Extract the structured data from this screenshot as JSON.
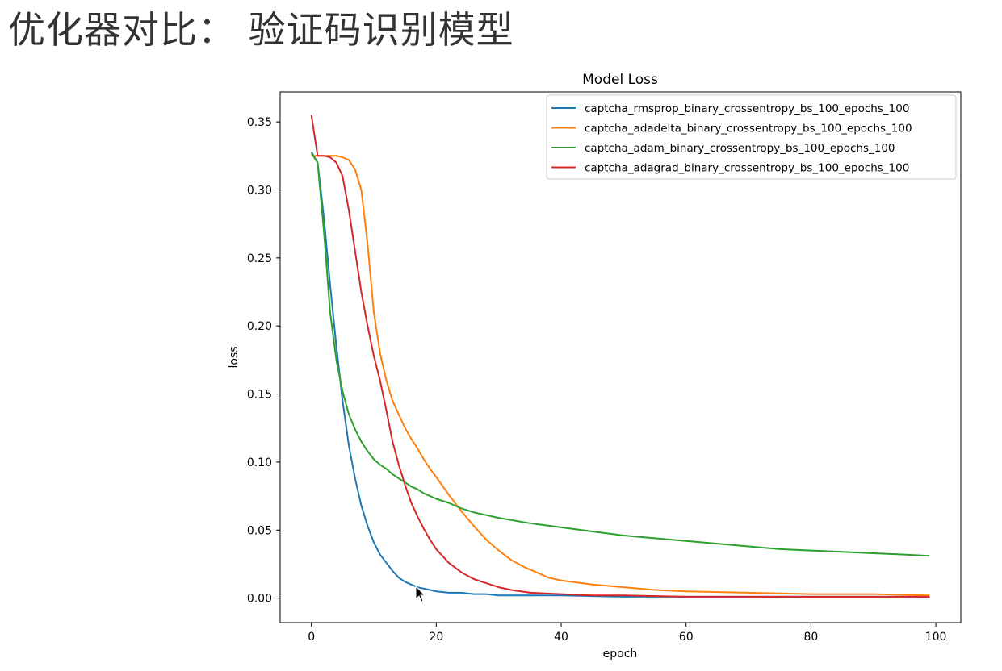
{
  "slide": {
    "title": "优化器对比： 验证码识别模型"
  },
  "chart_data": {
    "type": "line",
    "title": "Model Loss",
    "xlabel": "epoch",
    "ylabel": "loss",
    "xlim": [
      -5,
      104
    ],
    "ylim": [
      -0.018,
      0.372
    ],
    "xticks": [
      0,
      20,
      40,
      60,
      80,
      100
    ],
    "xtick_labels": [
      "0",
      "20",
      "40",
      "60",
      "80",
      "100"
    ],
    "yticks": [
      0.0,
      0.05,
      0.1,
      0.15,
      0.2,
      0.25,
      0.3,
      0.35
    ],
    "ytick_labels": [
      "0.00",
      "0.05",
      "0.10",
      "0.15",
      "0.20",
      "0.25",
      "0.30",
      "0.35"
    ],
    "grid": false,
    "legend_position": "top-right",
    "series": [
      {
        "name": "captcha_rmsprop_binary_crossentropy_bs_100_epochs_100",
        "color": "#1f77b4",
        "x": [
          0,
          1,
          2,
          3,
          4,
          5,
          6,
          7,
          8,
          9,
          10,
          11,
          12,
          13,
          14,
          15,
          16,
          17,
          18,
          19,
          20,
          22,
          24,
          26,
          28,
          30,
          35,
          40,
          50,
          60,
          70,
          80,
          90,
          99
        ],
        "y": [
          0.328,
          0.32,
          0.28,
          0.23,
          0.185,
          0.145,
          0.112,
          0.088,
          0.068,
          0.053,
          0.041,
          0.032,
          0.026,
          0.02,
          0.015,
          0.012,
          0.01,
          0.008,
          0.007,
          0.006,
          0.005,
          0.004,
          0.004,
          0.003,
          0.003,
          0.002,
          0.002,
          0.002,
          0.001,
          0.001,
          0.001,
          0.001,
          0.001,
          0.001
        ]
      },
      {
        "name": "captcha_adadelta_binary_crossentropy_bs_100_epochs_100",
        "color": "#ff7f0e",
        "x": [
          0,
          2,
          4,
          5,
          6,
          7,
          8,
          9,
          10,
          11,
          12,
          13,
          14,
          15,
          16,
          17,
          18,
          19,
          20,
          22,
          24,
          26,
          28,
          30,
          32,
          34,
          36,
          38,
          40,
          45,
          50,
          55,
          60,
          70,
          80,
          90,
          99
        ],
        "y": [
          0.325,
          0.325,
          0.325,
          0.324,
          0.322,
          0.315,
          0.3,
          0.26,
          0.21,
          0.18,
          0.16,
          0.145,
          0.135,
          0.125,
          0.117,
          0.11,
          0.102,
          0.095,
          0.089,
          0.076,
          0.064,
          0.053,
          0.043,
          0.035,
          0.028,
          0.023,
          0.019,
          0.015,
          0.013,
          0.01,
          0.008,
          0.006,
          0.005,
          0.004,
          0.003,
          0.003,
          0.002
        ]
      },
      {
        "name": "captcha_adam_binary_crossentropy_bs_100_epochs_100",
        "color": "#2ca02c",
        "x": [
          0,
          1,
          2,
          3,
          4,
          5,
          6,
          7,
          8,
          9,
          10,
          11,
          12,
          13,
          14,
          15,
          16,
          17,
          18,
          19,
          20,
          22,
          24,
          26,
          28,
          30,
          35,
          40,
          45,
          50,
          55,
          60,
          65,
          70,
          75,
          80,
          85,
          90,
          95,
          99
        ],
        "y": [
          0.327,
          0.32,
          0.27,
          0.21,
          0.175,
          0.152,
          0.135,
          0.124,
          0.115,
          0.108,
          0.102,
          0.098,
          0.095,
          0.091,
          0.088,
          0.085,
          0.082,
          0.08,
          0.077,
          0.075,
          0.073,
          0.07,
          0.066,
          0.063,
          0.061,
          0.059,
          0.055,
          0.052,
          0.049,
          0.046,
          0.044,
          0.042,
          0.04,
          0.038,
          0.036,
          0.035,
          0.034,
          0.033,
          0.032,
          0.031
        ]
      },
      {
        "name": "captcha_adagrad_binary_crossentropy_bs_100_epochs_100",
        "color": "#d62728",
        "x": [
          0,
          1,
          2,
          3,
          4,
          5,
          6,
          7,
          8,
          9,
          10,
          11,
          12,
          13,
          14,
          15,
          16,
          17,
          18,
          19,
          20,
          22,
          24,
          26,
          28,
          30,
          32,
          35,
          40,
          45,
          50,
          60,
          70,
          80,
          90,
          99
        ],
        "y": [
          0.355,
          0.325,
          0.325,
          0.324,
          0.32,
          0.31,
          0.285,
          0.255,
          0.225,
          0.2,
          0.178,
          0.16,
          0.138,
          0.115,
          0.098,
          0.083,
          0.07,
          0.06,
          0.051,
          0.043,
          0.036,
          0.026,
          0.019,
          0.014,
          0.011,
          0.008,
          0.006,
          0.004,
          0.003,
          0.002,
          0.002,
          0.001,
          0.001,
          0.001,
          0.001,
          0.001
        ]
      }
    ]
  }
}
